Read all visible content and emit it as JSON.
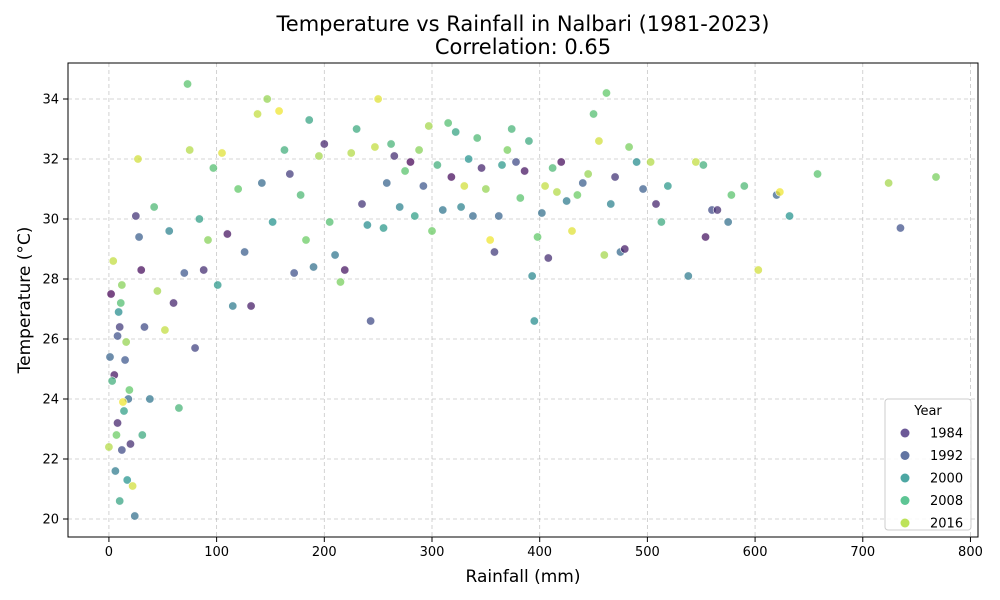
{
  "chart_data": {
    "type": "scatter",
    "title": "Temperature vs Rainfall in Nalbari (1981-2023)",
    "subtitle": "Correlation: 0.65",
    "xlabel": "Rainfall (mm)",
    "ylabel": "Temperature (°C)",
    "xlim": [
      -38,
      807
    ],
    "ylim": [
      19.4,
      35.2
    ],
    "xticks": [
      0,
      100,
      200,
      300,
      400,
      500,
      600,
      700,
      800
    ],
    "yticks": [
      20,
      22,
      24,
      26,
      28,
      30,
      32,
      34
    ],
    "grid": true,
    "legend": {
      "title": "Year",
      "placement": "bottom-right",
      "entries": [
        {
          "label": "1984",
          "color": "#472f7d"
        },
        {
          "label": "1992",
          "color": "#3b528b"
        },
        {
          "label": "2000",
          "color": "#21918c"
        },
        {
          "label": "2008",
          "color": "#35b779"
        },
        {
          "label": "2016",
          "color": "#addc30"
        }
      ]
    },
    "colorscale": {
      "year_range": [
        1981,
        2023
      ],
      "stops": [
        "#440154",
        "#3b528b",
        "#21918c",
        "#5ec962",
        "#fde725"
      ]
    },
    "points": [
      {
        "x": 2,
        "y": 27.5,
        "year": 1981
      },
      {
        "x": 5,
        "y": 24.8,
        "year": 1983
      },
      {
        "x": 8,
        "y": 23.2,
        "year": 1985
      },
      {
        "x": 10,
        "y": 26.4,
        "year": 1988
      },
      {
        "x": 12,
        "y": 22.3,
        "year": 1990
      },
      {
        "x": 15,
        "y": 25.3,
        "year": 1992
      },
      {
        "x": 18,
        "y": 24.0,
        "year": 1995
      },
      {
        "x": 6,
        "y": 21.6,
        "year": 1998
      },
      {
        "x": 9,
        "y": 26.9,
        "year": 2001
      },
      {
        "x": 14,
        "y": 23.6,
        "year": 2004
      },
      {
        "x": 3,
        "y": 24.6,
        "year": 2007
      },
      {
        "x": 11,
        "y": 27.2,
        "year": 2010
      },
      {
        "x": 7,
        "y": 22.8,
        "year": 2013
      },
      {
        "x": 16,
        "y": 25.9,
        "year": 2016
      },
      {
        "x": 4,
        "y": 28.6,
        "year": 2019
      },
      {
        "x": 13,
        "y": 23.9,
        "year": 2022
      },
      {
        "x": 20,
        "y": 22.5,
        "year": 1986
      },
      {
        "x": 1,
        "y": 25.4,
        "year": 1994
      },
      {
        "x": 17,
        "y": 21.3,
        "year": 2002
      },
      {
        "x": 19,
        "y": 24.3,
        "year": 2012
      },
      {
        "x": 0,
        "y": 22.4,
        "year": 2018
      },
      {
        "x": 10,
        "y": 20.6,
        "year": 2005
      },
      {
        "x": 24,
        "y": 20.1,
        "year": 1996
      },
      {
        "x": 12,
        "y": 27.8,
        "year": 2015
      },
      {
        "x": 8,
        "y": 26.1,
        "year": 1991
      },
      {
        "x": 22,
        "y": 21.1,
        "year": 2020
      },
      {
        "x": 25,
        "y": 30.1,
        "year": 1987
      },
      {
        "x": 28,
        "y": 29.4,
        "year": 1993
      },
      {
        "x": 30,
        "y": 28.3,
        "year": 1982
      },
      {
        "x": 33,
        "y": 26.4,
        "year": 1990
      },
      {
        "x": 38,
        "y": 24.0,
        "year": 1997
      },
      {
        "x": 42,
        "y": 30.4,
        "year": 2009
      },
      {
        "x": 45,
        "y": 27.6,
        "year": 2017
      },
      {
        "x": 52,
        "y": 26.3,
        "year": 2019
      },
      {
        "x": 31,
        "y": 22.8,
        "year": 2006
      },
      {
        "x": 27,
        "y": 32.0,
        "year": 2020
      },
      {
        "x": 56,
        "y": 29.6,
        "year": 1999
      },
      {
        "x": 60,
        "y": 27.2,
        "year": 1985
      },
      {
        "x": 65,
        "y": 23.7,
        "year": 2008
      },
      {
        "x": 70,
        "y": 28.2,
        "year": 1992
      },
      {
        "x": 73,
        "y": 34.5,
        "year": 2011
      },
      {
        "x": 75,
        "y": 32.3,
        "year": 2018
      },
      {
        "x": 80,
        "y": 25.7,
        "year": 1989
      },
      {
        "x": 84,
        "y": 30.0,
        "year": 2004
      },
      {
        "x": 88,
        "y": 28.3,
        "year": 1986
      },
      {
        "x": 92,
        "y": 29.3,
        "year": 2015
      },
      {
        "x": 97,
        "y": 31.7,
        "year": 2010
      },
      {
        "x": 101,
        "y": 27.8,
        "year": 2003
      },
      {
        "x": 105,
        "y": 32.2,
        "year": 2021
      },
      {
        "x": 110,
        "y": 29.5,
        "year": 1983
      },
      {
        "x": 115,
        "y": 27.1,
        "year": 1998
      },
      {
        "x": 120,
        "y": 31.0,
        "year": 2012
      },
      {
        "x": 126,
        "y": 28.9,
        "year": 1993
      },
      {
        "x": 132,
        "y": 27.1,
        "year": 1984
      },
      {
        "x": 138,
        "y": 33.5,
        "year": 2019
      },
      {
        "x": 142,
        "y": 31.2,
        "year": 1995
      },
      {
        "x": 147,
        "y": 34.0,
        "year": 2016
      },
      {
        "x": 152,
        "y": 29.9,
        "year": 2002
      },
      {
        "x": 158,
        "y": 33.6,
        "year": 2022
      },
      {
        "x": 163,
        "y": 32.3,
        "year": 2007
      },
      {
        "x": 168,
        "y": 31.5,
        "year": 1988
      },
      {
        "x": 172,
        "y": 28.2,
        "year": 1991
      },
      {
        "x": 178,
        "y": 30.8,
        "year": 2009
      },
      {
        "x": 183,
        "y": 29.3,
        "year": 2013
      },
      {
        "x": 186,
        "y": 33.3,
        "year": 2005
      },
      {
        "x": 190,
        "y": 28.4,
        "year": 1996
      },
      {
        "x": 195,
        "y": 32.1,
        "year": 2017
      },
      {
        "x": 200,
        "y": 32.5,
        "year": 1985
      },
      {
        "x": 205,
        "y": 29.9,
        "year": 2010
      },
      {
        "x": 210,
        "y": 28.8,
        "year": 1997
      },
      {
        "x": 215,
        "y": 27.9,
        "year": 2014
      },
      {
        "x": 219,
        "y": 28.3,
        "year": 1983
      },
      {
        "x": 225,
        "y": 32.2,
        "year": 2018
      },
      {
        "x": 230,
        "y": 33.0,
        "year": 2006
      },
      {
        "x": 235,
        "y": 30.5,
        "year": 1987
      },
      {
        "x": 240,
        "y": 29.8,
        "year": 2001
      },
      {
        "x": 243,
        "y": 26.6,
        "year": 1990
      },
      {
        "x": 247,
        "y": 32.4,
        "year": 2019
      },
      {
        "x": 250,
        "y": 34.0,
        "year": 2021
      },
      {
        "x": 255,
        "y": 29.7,
        "year": 2003
      },
      {
        "x": 258,
        "y": 31.2,
        "year": 1994
      },
      {
        "x": 262,
        "y": 32.5,
        "year": 2008
      },
      {
        "x": 265,
        "y": 32.1,
        "year": 1986
      },
      {
        "x": 270,
        "y": 30.4,
        "year": 1999
      },
      {
        "x": 275,
        "y": 31.6,
        "year": 2011
      },
      {
        "x": 280,
        "y": 31.9,
        "year": 1981
      },
      {
        "x": 284,
        "y": 30.1,
        "year": 2004
      },
      {
        "x": 288,
        "y": 32.3,
        "year": 2015
      },
      {
        "x": 292,
        "y": 31.1,
        "year": 1992
      },
      {
        "x": 297,
        "y": 33.1,
        "year": 2017
      },
      {
        "x": 300,
        "y": 29.6,
        "year": 2013
      },
      {
        "x": 305,
        "y": 31.8,
        "year": 2007
      },
      {
        "x": 310,
        "y": 30.3,
        "year": 1997
      },
      {
        "x": 315,
        "y": 33.2,
        "year": 2010
      },
      {
        "x": 318,
        "y": 31.4,
        "year": 1982
      },
      {
        "x": 322,
        "y": 32.9,
        "year": 2005
      },
      {
        "x": 327,
        "y": 30.4,
        "year": 1999
      },
      {
        "x": 330,
        "y": 31.1,
        "year": 2020
      },
      {
        "x": 334,
        "y": 32.0,
        "year": 2002
      },
      {
        "x": 338,
        "y": 30.1,
        "year": 1995
      },
      {
        "x": 342,
        "y": 32.7,
        "year": 2009
      },
      {
        "x": 346,
        "y": 31.7,
        "year": 1985
      },
      {
        "x": 350,
        "y": 31.0,
        "year": 2016
      },
      {
        "x": 354,
        "y": 29.3,
        "year": 2022
      },
      {
        "x": 358,
        "y": 28.9,
        "year": 1988
      },
      {
        "x": 362,
        "y": 30.1,
        "year": 1994
      },
      {
        "x": 365,
        "y": 31.8,
        "year": 2003
      },
      {
        "x": 370,
        "y": 32.3,
        "year": 2014
      },
      {
        "x": 374,
        "y": 33.0,
        "year": 2008
      },
      {
        "x": 378,
        "y": 31.9,
        "year": 1990
      },
      {
        "x": 382,
        "y": 30.7,
        "year": 2011
      },
      {
        "x": 386,
        "y": 31.6,
        "year": 1983
      },
      {
        "x": 390,
        "y": 32.6,
        "year": 2006
      },
      {
        "x": 393,
        "y": 28.1,
        "year": 2000
      },
      {
        "x": 395,
        "y": 26.6,
        "year": 2001
      },
      {
        "x": 398,
        "y": 29.4,
        "year": 2012
      },
      {
        "x": 402,
        "y": 30.2,
        "year": 1996
      },
      {
        "x": 405,
        "y": 31.1,
        "year": 2019
      },
      {
        "x": 408,
        "y": 28.7,
        "year": 1986
      },
      {
        "x": 412,
        "y": 31.7,
        "year": 2009
      },
      {
        "x": 416,
        "y": 30.9,
        "year": 2018
      },
      {
        "x": 420,
        "y": 31.9,
        "year": 1982
      },
      {
        "x": 425,
        "y": 30.6,
        "year": 1998
      },
      {
        "x": 430,
        "y": 29.6,
        "year": 2021
      },
      {
        "x": 435,
        "y": 30.8,
        "year": 2013
      },
      {
        "x": 440,
        "y": 31.2,
        "year": 1993
      },
      {
        "x": 445,
        "y": 31.5,
        "year": 2016
      },
      {
        "x": 450,
        "y": 33.5,
        "year": 2010
      },
      {
        "x": 455,
        "y": 32.6,
        "year": 2020
      },
      {
        "x": 460,
        "y": 28.8,
        "year": 2017
      },
      {
        "x": 462,
        "y": 34.2,
        "year": 2012
      },
      {
        "x": 466,
        "y": 30.5,
        "year": 1999
      },
      {
        "x": 470,
        "y": 31.4,
        "year": 1987
      },
      {
        "x": 475,
        "y": 28.9,
        "year": 1995
      },
      {
        "x": 479,
        "y": 29.0,
        "year": 1984
      },
      {
        "x": 483,
        "y": 32.4,
        "year": 2014
      },
      {
        "x": 490,
        "y": 31.9,
        "year": 2001
      },
      {
        "x": 496,
        "y": 31.0,
        "year": 1993
      },
      {
        "x": 503,
        "y": 31.9,
        "year": 2018
      },
      {
        "x": 508,
        "y": 30.5,
        "year": 1985
      },
      {
        "x": 513,
        "y": 29.9,
        "year": 2006
      },
      {
        "x": 519,
        "y": 31.1,
        "year": 2003
      },
      {
        "x": 538,
        "y": 28.1,
        "year": 1998
      },
      {
        "x": 545,
        "y": 31.9,
        "year": 2019
      },
      {
        "x": 552,
        "y": 31.8,
        "year": 2007
      },
      {
        "x": 554,
        "y": 29.4,
        "year": 1983
      },
      {
        "x": 560,
        "y": 30.3,
        "year": 1990
      },
      {
        "x": 565,
        "y": 30.3,
        "year": 1986
      },
      {
        "x": 575,
        "y": 29.9,
        "year": 1996
      },
      {
        "x": 578,
        "y": 30.8,
        "year": 2011
      },
      {
        "x": 590,
        "y": 31.1,
        "year": 2009
      },
      {
        "x": 603,
        "y": 28.3,
        "year": 2020
      },
      {
        "x": 620,
        "y": 30.8,
        "year": 1994
      },
      {
        "x": 623,
        "y": 30.9,
        "year": 2022
      },
      {
        "x": 632,
        "y": 30.1,
        "year": 2002
      },
      {
        "x": 658,
        "y": 31.5,
        "year": 2011
      },
      {
        "x": 724,
        "y": 31.2,
        "year": 2017
      },
      {
        "x": 735,
        "y": 29.7,
        "year": 1991
      },
      {
        "x": 768,
        "y": 31.4,
        "year": 2014
      }
    ]
  }
}
